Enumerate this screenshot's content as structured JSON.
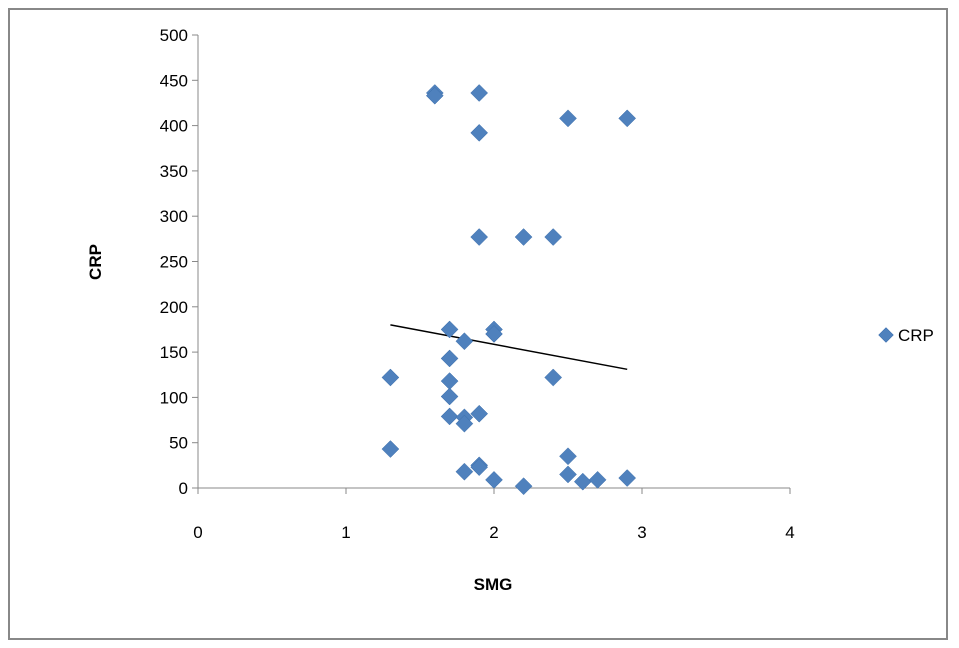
{
  "chart_data": {
    "type": "scatter",
    "xlabel": "SMG",
    "ylabel": "CRP",
    "xlim": [
      0,
      4
    ],
    "ylim": [
      0,
      500
    ],
    "x_ticks": [
      0,
      1,
      2,
      3,
      4
    ],
    "y_ticks": [
      0,
      50,
      100,
      150,
      200,
      250,
      300,
      350,
      400,
      450,
      500
    ],
    "grid": false,
    "legend_position": "right",
    "marker": "diamond",
    "marker_color": "#4F81BD",
    "trendline_color": "#000000",
    "series": [
      {
        "name": "CRP",
        "points": [
          {
            "x": 1.3,
            "y": 122
          },
          {
            "x": 1.3,
            "y": 43
          },
          {
            "x": 1.6,
            "y": 436
          },
          {
            "x": 1.6,
            "y": 433
          },
          {
            "x": 1.7,
            "y": 175
          },
          {
            "x": 1.7,
            "y": 143
          },
          {
            "x": 1.7,
            "y": 118
          },
          {
            "x": 1.7,
            "y": 101
          },
          {
            "x": 1.7,
            "y": 79
          },
          {
            "x": 1.8,
            "y": 162
          },
          {
            "x": 1.8,
            "y": 78
          },
          {
            "x": 1.8,
            "y": 71
          },
          {
            "x": 1.8,
            "y": 18
          },
          {
            "x": 1.9,
            "y": 436
          },
          {
            "x": 1.9,
            "y": 392
          },
          {
            "x": 1.9,
            "y": 277
          },
          {
            "x": 1.9,
            "y": 82
          },
          {
            "x": 1.9,
            "y": 25
          },
          {
            "x": 1.9,
            "y": 23
          },
          {
            "x": 2.0,
            "y": 175
          },
          {
            "x": 2.0,
            "y": 170
          },
          {
            "x": 2.0,
            "y": 9
          },
          {
            "x": 2.2,
            "y": 277
          },
          {
            "x": 2.2,
            "y": 2
          },
          {
            "x": 2.4,
            "y": 277
          },
          {
            "x": 2.4,
            "y": 122
          },
          {
            "x": 2.5,
            "y": 408
          },
          {
            "x": 2.5,
            "y": 35
          },
          {
            "x": 2.5,
            "y": 15
          },
          {
            "x": 2.6,
            "y": 7
          },
          {
            "x": 2.7,
            "y": 9
          },
          {
            "x": 2.9,
            "y": 408
          },
          {
            "x": 2.9,
            "y": 11
          }
        ]
      }
    ],
    "trendline": {
      "x": [
        1.3,
        2.9
      ],
      "y": [
        180,
        131
      ]
    }
  }
}
